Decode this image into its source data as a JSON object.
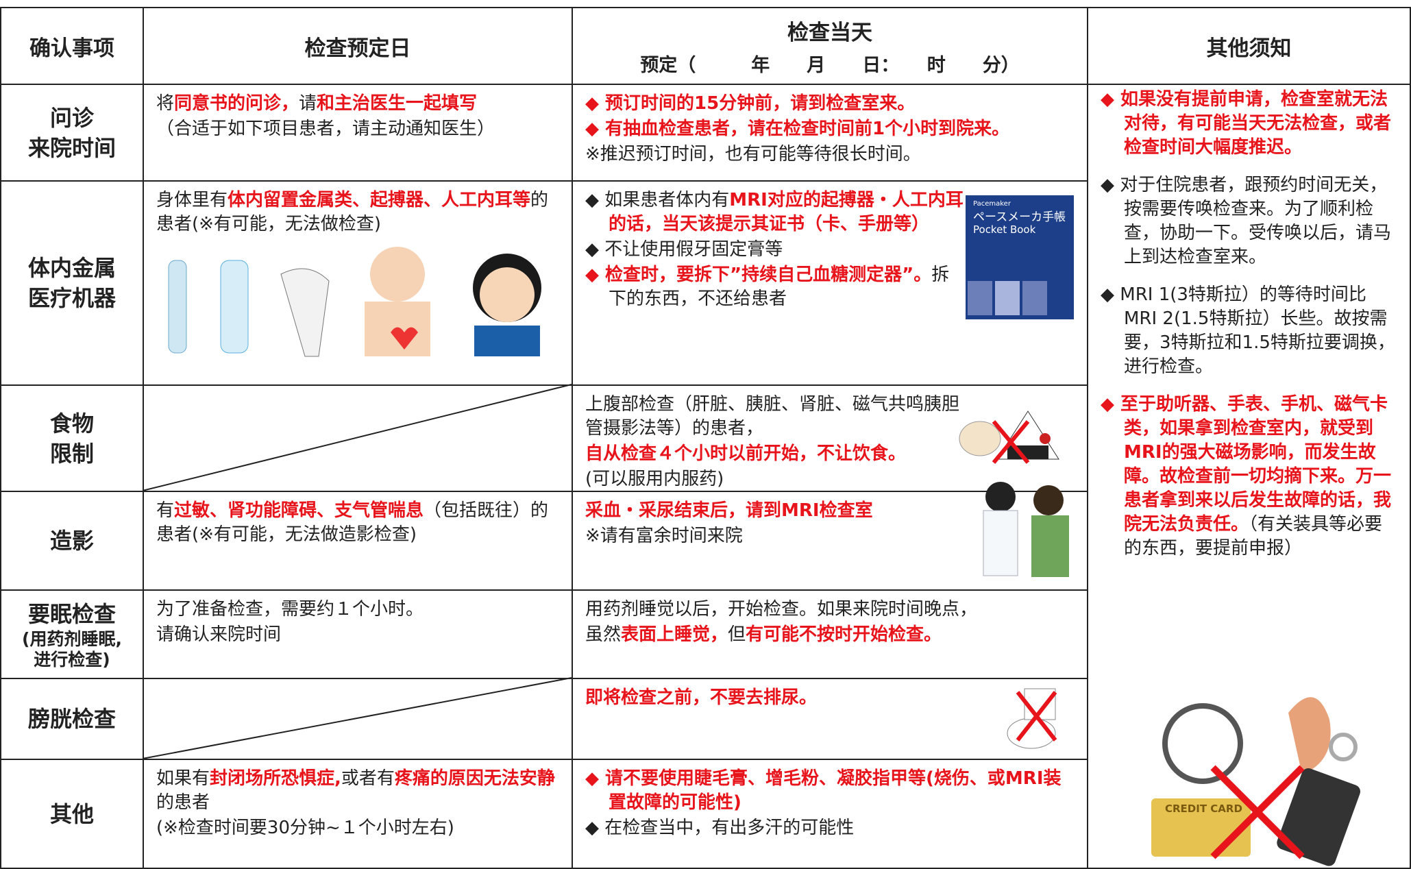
{
  "header": {
    "item": "确认事项",
    "scheduled": "检查预定日",
    "day_title": "检查当天",
    "day_subtitle": "预定（　　　年　　月　　日：　　时　　分）",
    "notes": "其他须知"
  },
  "rows": [
    {
      "label": [
        "问诊",
        "来院时间"
      ],
      "scheduled": [
        [
          {
            "text": "将"
          },
          {
            "text": "同意书的问诊，",
            "red": true
          },
          {
            "text": "请"
          },
          {
            "text": "和主治医生一起填写",
            "red": true
          }
        ],
        [
          {
            "text": "（合适于如下项目患者，请主动通知医生）"
          }
        ]
      ],
      "day": [
        [
          {
            "text": "◆ 预订时间的15分钟前，请到检查室来。",
            "red": true
          }
        ],
        [
          {
            "text": "◆ 有抽血检查患者，请在检查时间前1个小时到院来。",
            "red": true
          }
        ],
        [
          {
            "text": "※推迟预订时间，也有可能等待很长时间。"
          }
        ]
      ]
    },
    {
      "label": [
        "体内金属",
        "医疗机器"
      ],
      "scheduled": [
        [
          {
            "text": "身体里有"
          },
          {
            "text": "体内留置金属类、起搏器、人工内耳等",
            "red": true
          },
          {
            "text": "的患者(※有可能，无法做检查)"
          }
        ]
      ],
      "day": [
        [
          {
            "text": "◆ 如果患者体内有"
          },
          {
            "text": "MRI对应的起搏器・人工内耳的话，当天该提示其证书（卡、手册等）",
            "red": true
          }
        ],
        [
          {
            "text": "◆ 不让使用假牙固定膏等"
          }
        ],
        [
          {
            "text": "◆ 检查时，要拆下”持续自己血糖测定器”。",
            "red": true
          },
          {
            "text": "拆下的东西，不还给患者"
          }
        ]
      ],
      "book": [
        "Pacemaker",
        "ペースメーカ手帳",
        "Pocket Book"
      ]
    },
    {
      "label": [
        "食物",
        "限制"
      ],
      "scheduled": null,
      "day": [
        [
          {
            "text": "上腹部检查（肝脏、胰脏、肾脏、磁气共鸣胰胆管摄影法等）的患者，"
          }
        ],
        [
          {
            "text": "自从检查４个小时以前开始，不让饮食。",
            "red": true
          }
        ],
        [
          {
            "text": "(可以服用内服药)"
          }
        ]
      ]
    },
    {
      "label": [
        "造影"
      ],
      "scheduled": [
        [
          {
            "text": "有"
          },
          {
            "text": "过敏、肾功能障碍、支气管喘息",
            "red": true
          },
          {
            "text": "（包括既往）的患者(※有可能，无法做造影检查)"
          }
        ]
      ],
      "day": [
        [
          {
            "text": "采血・采尿结束后，请到MRI检查室",
            "red": true
          }
        ],
        [
          {
            "text": "※请有富余时间来院"
          }
        ]
      ]
    },
    {
      "label": [
        "要眠检查",
        "(用药剂睡眠,",
        "进行检查)"
      ],
      "scheduled": [
        [
          {
            "text": "为了准备检查，需要约１个小时。"
          }
        ],
        [
          {
            "text": "请确认来院时间"
          }
        ]
      ],
      "day": [
        [
          {
            "text": "用药剂睡觉以后，开始检查。如果来院时间晚点，"
          }
        ],
        [
          {
            "text": "虽然"
          },
          {
            "text": "表面上睡觉，",
            "red": true
          },
          {
            "text": "但"
          },
          {
            "text": "有可能不按时开始检查。",
            "red": true
          }
        ]
      ]
    },
    {
      "label": [
        "膀胱检查"
      ],
      "scheduled": null,
      "day": [
        [
          {
            "text": "即将检查之前，不要去排尿。",
            "red": true
          }
        ]
      ]
    },
    {
      "label": [
        "其他"
      ],
      "scheduled": [
        [
          {
            "text": "如果有"
          },
          {
            "text": "封闭场所恐惧症,",
            "red": true
          },
          {
            "text": "或者有"
          },
          {
            "text": "疼痛的原因无法安静",
            "red": true
          },
          {
            "text": "的患者"
          }
        ],
        [
          {
            "text": "(※检查时间要30分钟~１个小时左右)"
          }
        ]
      ],
      "day": [
        [
          {
            "text": "◆ 请不要使用睫毛膏、增毛粉、凝胶指甲等(烧伤、或MRI装置故障的可能性)",
            "red": true
          }
        ],
        [
          {
            "text": "◆ 在检查当中，有出多汗的可能性"
          }
        ]
      ]
    }
  ],
  "notes": [
    [
      {
        "text": "◆ 如果没有提前申请，检查室就无法对待，有可能当天无法检查，或者检查时间大幅度推迟。",
        "red": true
      }
    ],
    [
      {
        "text": "◆ 对于住院患者，跟预约时间无关，按需要传唤检查来。为了顺利检查，协助一下。受传唤以后，请马上到达检查室来。"
      }
    ],
    [
      {
        "text": "◆ MRI 1(3特斯拉）的等待时间比MRI 2(1.5特斯拉）长些。故按需要，3特斯拉和1.5特斯拉要调换，进行检查。"
      }
    ],
    [
      {
        "text": "◆ 至于助听器、手表、手机、磁气卡类，如果拿到检查室内，就受到MRI的强大磁场影响，而发生故障。故检查前一切均摘下来。万一患者拿到来以后发生故障的话，我院无法负责任。",
        "red": true
      },
      {
        "text": "（有关装具等必要的东西，要提前申报）"
      }
    ]
  ],
  "notes_card": "CREDIT CARD"
}
